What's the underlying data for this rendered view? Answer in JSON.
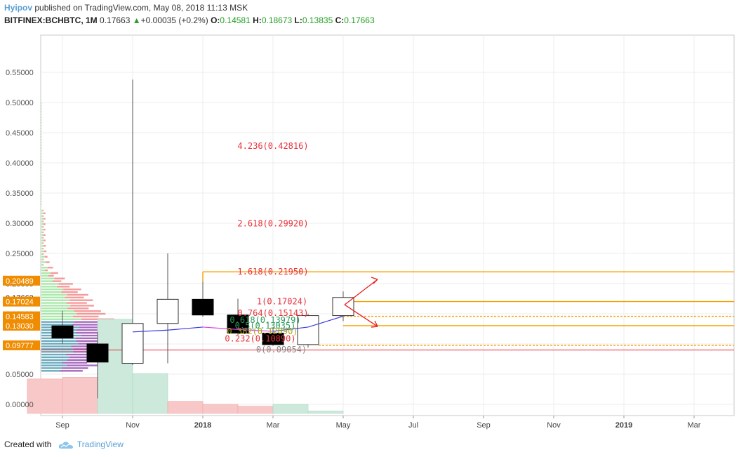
{
  "header": {
    "author": "Hyipov",
    "published_text": "published on TradingView.com, May 08, 2018 11:13 MSK",
    "symbol": "BITFINEX:BCHBTC, 1M",
    "last": "0.17663",
    "change": "+0.00035 (+0.2%)",
    "o_label": "O:",
    "o_value": "0.14581",
    "h_label": "H:",
    "h_value": "0.18673",
    "l_label": "L:",
    "l_value": "0.13835",
    "c_label": "C:",
    "c_value": "0.17663"
  },
  "footer": {
    "created_with": "Created with",
    "brand": "TradingView"
  },
  "colors": {
    "up_candle": "#ffffff",
    "down_candle": "#000000",
    "fib_text": "#e8303a",
    "fib_line": "#f5a000",
    "vol_up": "#cde9dc",
    "vol_down": "#f8c8c8",
    "price_tag": "#f08c00",
    "support_line": "#e8303a",
    "ma_line": "#3a3ae0",
    "ma_segment": "#e040e0",
    "arrow": "#e82020"
  },
  "chart_data": {
    "type": "candlestick",
    "yaxis_ticks": [
      "0.55000",
      "0.50000",
      "0.45000",
      "0.40000",
      "0.35000",
      "0.30000",
      "0.25000",
      "0.20000",
      "0.15000",
      "0.10000",
      "0.05000",
      "0.00000"
    ],
    "ylim": [
      -0.015,
      0.56
    ],
    "xaxis_ticks": [
      {
        "label": "Sep",
        "month": 1,
        "bold": false
      },
      {
        "label": "Nov",
        "month": 3,
        "bold": false
      },
      {
        "label": "2018",
        "month": 5,
        "bold": true
      },
      {
        "label": "Mar",
        "month": 7,
        "bold": false
      },
      {
        "label": "May",
        "month": 9,
        "bold": false
      },
      {
        "label": "Jul",
        "month": 11,
        "bold": false
      },
      {
        "label": "Sep",
        "month": 13,
        "bold": false
      },
      {
        "label": "Nov",
        "month": 15,
        "bold": false
      },
      {
        "label": "2019",
        "month": 17,
        "bold": true
      },
      {
        "label": "Mar",
        "month": 19,
        "bold": false
      }
    ],
    "candles": [
      {
        "month": 1,
        "open": 0.13,
        "high": 0.155,
        "low": 0.1,
        "close": 0.11
      },
      {
        "month": 2,
        "open": 0.1,
        "high": 0.12,
        "low": 0.01,
        "close": 0.07
      },
      {
        "month": 3,
        "open": 0.068,
        "high": 0.538,
        "low": 0.065,
        "close": 0.134
      },
      {
        "month": 4,
        "open": 0.134,
        "high": 0.25,
        "low": 0.068,
        "close": 0.174
      },
      {
        "month": 5,
        "open": 0.174,
        "high": 0.203,
        "low": 0.145,
        "close": 0.148
      },
      {
        "month": 6,
        "open": 0.148,
        "high": 0.175,
        "low": 0.115,
        "close": 0.118
      },
      {
        "month": 7,
        "open": 0.118,
        "high": 0.128,
        "low": 0.097,
        "close": 0.099
      },
      {
        "month": 8,
        "open": 0.099,
        "high": 0.15,
        "low": 0.094,
        "close": 0.147
      },
      {
        "month": 9,
        "open": 0.147,
        "high": 0.187,
        "low": 0.138,
        "close": 0.177
      }
    ],
    "volume": [
      {
        "month": 0.5,
        "value": 0.042,
        "up": false
      },
      {
        "month": 1.5,
        "value": 0.045,
        "up": false
      },
      {
        "month": 2.5,
        "value": 0.141,
        "up": true
      },
      {
        "month": 3.5,
        "value": 0.051,
        "up": true
      },
      {
        "month": 4.5,
        "value": 0.005,
        "up": false
      },
      {
        "month": 5.5,
        "value": 0.0,
        "up": false
      },
      {
        "month": 6.5,
        "value": -0.003,
        "up": false
      },
      {
        "month": 7.5,
        "value": 0.0,
        "up": true
      },
      {
        "month": 8.5,
        "value": -0.011,
        "up": true
      }
    ],
    "moving_average": [
      {
        "month": 3,
        "value": 0.12
      },
      {
        "month": 4,
        "value": 0.123
      },
      {
        "month": 5,
        "value": 0.128,
        "pink": true
      },
      {
        "month": 6,
        "value": 0.124,
        "pink": true
      },
      {
        "month": 7,
        "value": 0.121,
        "pink": true
      },
      {
        "month": 8,
        "value": 0.128
      },
      {
        "month": 9,
        "value": 0.146
      }
    ],
    "fibonacci": [
      {
        "label": "4.236(0.42816)",
        "value": 0.42816
      },
      {
        "label": "2.618(0.29920)",
        "value": 0.2992
      },
      {
        "label": "1.618(0.21950)",
        "value": 0.2195
      },
      {
        "label": "1(0.17024)",
        "value": 0.17024
      },
      {
        "label": "0.764(0.15143)",
        "value": 0.15143
      },
      {
        "label": "0.618(0.13979)",
        "value": 0.13979
      },
      {
        "label": "0.5(0.13035)",
        "value": 0.13035
      },
      {
        "label": "0.382(0.12090)",
        "value": 0.1209
      },
      {
        "label": "0.232(0.10890)",
        "value": 0.1089
      },
      {
        "label": "0(0.09054)",
        "value": 0.09054
      }
    ],
    "price_tags": [
      {
        "label": "0.20489",
        "value": 0.20489,
        "style": "orange"
      },
      {
        "label": "0.17663",
        "value": 0.17663,
        "style": "plain"
      },
      {
        "label": "0.17024",
        "value": 0.17024,
        "style": "orange"
      },
      {
        "label": "0.14583",
        "value": 0.14583,
        "style": "orange"
      },
      {
        "label": "0.13030",
        "value": 0.1303,
        "style": "orange"
      },
      {
        "label": "0.09777",
        "value": 0.09777,
        "style": "orange"
      }
    ],
    "support_level": 0.09
  }
}
